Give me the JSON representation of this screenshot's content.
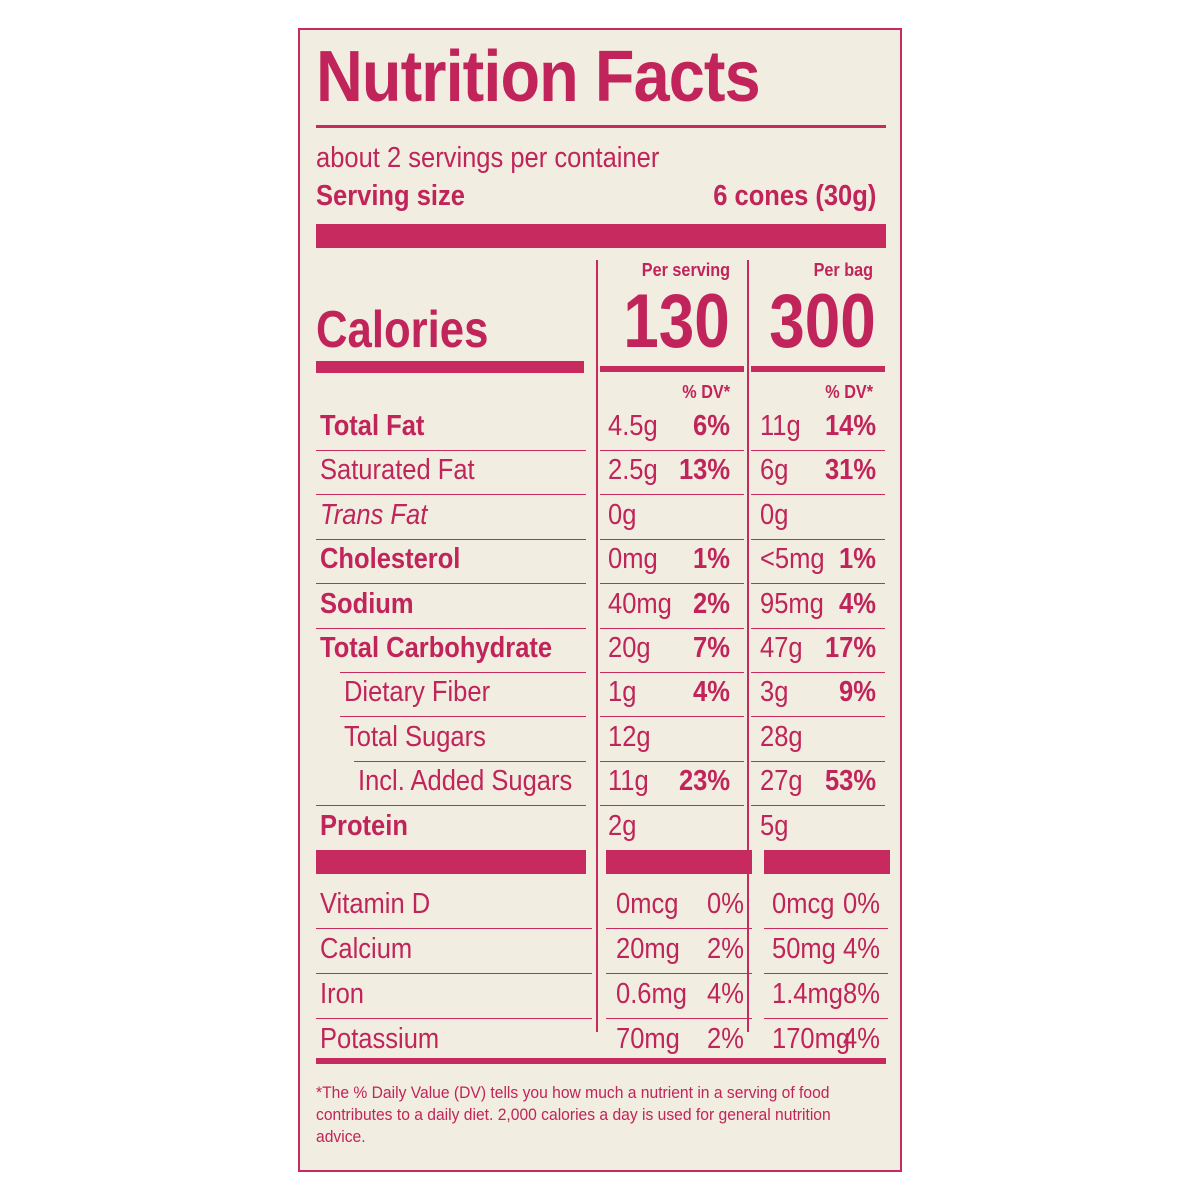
{
  "title": "Nutrition Facts",
  "servings_per_container": "about 2 servings per container",
  "serving_size_label": "Serving size",
  "serving_size_value": "6 cones (30g)",
  "columns": {
    "per_serving": "Per serving",
    "per_bag": "Per bag",
    "dv": "% DV*"
  },
  "calories": {
    "label": "Calories",
    "per_serving": "130",
    "per_bag": "300"
  },
  "nutrients": [
    {
      "name": "Total Fat",
      "s_amt": "4.5g",
      "s_dv": "6%",
      "b_amt": "11g",
      "b_dv": "14%"
    },
    {
      "name": "Saturated Fat",
      "s_amt": "2.5g",
      "s_dv": "13%",
      "b_amt": "6g",
      "b_dv": "31%"
    },
    {
      "name": "Trans Fat",
      "s_amt": "0g",
      "s_dv": "",
      "b_amt": "0g",
      "b_dv": ""
    },
    {
      "name": "Cholesterol",
      "s_amt": "0mg",
      "s_dv": "1%",
      "b_amt": "<5mg",
      "b_dv": "1%"
    },
    {
      "name": "Sodium",
      "s_amt": "40mg",
      "s_dv": "2%",
      "b_amt": "95mg",
      "b_dv": "4%"
    },
    {
      "name": "Total Carbohydrate",
      "s_amt": "20g",
      "s_dv": "7%",
      "b_amt": "47g",
      "b_dv": "17%"
    },
    {
      "name": "Dietary Fiber",
      "s_amt": "1g",
      "s_dv": "4%",
      "b_amt": "3g",
      "b_dv": "9%"
    },
    {
      "name": "Total Sugars",
      "s_amt": "12g",
      "s_dv": "",
      "b_amt": "28g",
      "b_dv": ""
    },
    {
      "name": "Incl. Added Sugars",
      "s_amt": "11g",
      "s_dv": "23%",
      "b_amt": "27g",
      "b_dv": "53%"
    },
    {
      "name": "Protein",
      "s_amt": "2g",
      "s_dv": "",
      "b_amt": "5g",
      "b_dv": ""
    }
  ],
  "vitamins": [
    {
      "name": "Vitamin D",
      "s_amt": "0mcg",
      "s_dv": "0%",
      "b_amt": "0mcg",
      "b_dv": "0%"
    },
    {
      "name": "Calcium",
      "s_amt": "20mg",
      "s_dv": "2%",
      "b_amt": "50mg",
      "b_dv": "4%"
    },
    {
      "name": "Iron",
      "s_amt": "0.6mg",
      "s_dv": "4%",
      "b_amt": "1.4mg",
      "b_dv": "8%"
    },
    {
      "name": "Potassium",
      "s_amt": "70mg",
      "s_dv": "2%",
      "b_amt": "170mg",
      "b_dv": "4%"
    }
  ],
  "footnote": "*The % Daily Value (DV) tells you how much a nutrient in a serving of food contributes to a daily diet. 2,000 calories a day is used for general nutrition advice.",
  "colors": {
    "ink": "#c0245a",
    "background": "#f2ede1"
  }
}
